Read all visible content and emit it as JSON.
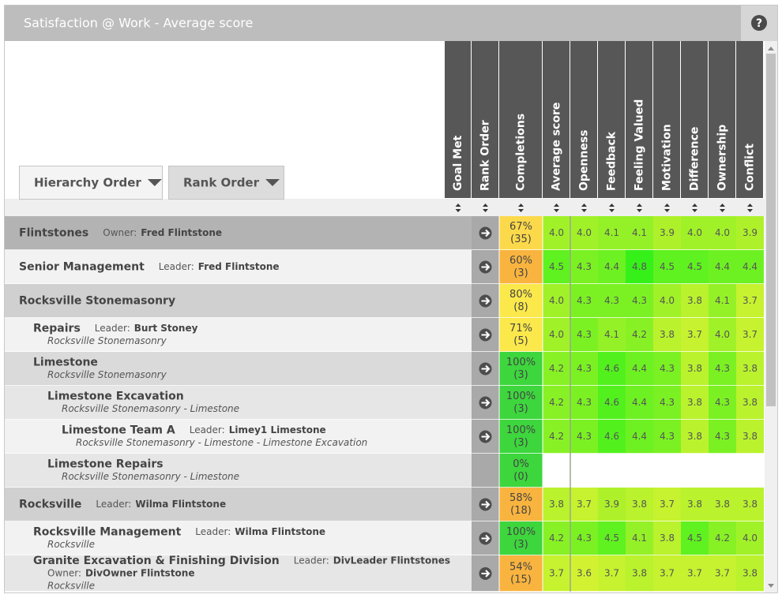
{
  "title": "Satisfaction @ Work - Average score",
  "help": "?",
  "tabs": [
    "Hierarchy Order",
    "Rank Order"
  ],
  "columns": [
    "Goal Met",
    "Rank Order",
    "Completions",
    "Average score",
    "Openness",
    "Feedback",
    "Feeling Valued",
    "Motivation",
    "Difference",
    "Ownership",
    "Conflict"
  ],
  "rows": [
    {
      "name": "Flintstones",
      "people": [
        {
          "role": "Owner:",
          "name": "Fred Flintstone"
        }
      ],
      "completion": "67%",
      "count": "(35)",
      "completion_color": "#fcd94a",
      "scores": [
        "4.0",
        "4.0",
        "4.1",
        "4.1",
        "3.9",
        "4.0",
        "4.0",
        "3.9"
      ]
    },
    {
      "name": "Senior Management",
      "people": [
        {
          "role": "Leader:",
          "name": "Fred Flintstone"
        }
      ],
      "completion": "60%",
      "count": "(3)",
      "completion_color": "#f9b43f",
      "scores": [
        "4.5",
        "4.3",
        "4.4",
        "4.8",
        "4.5",
        "4.5",
        "4.4",
        "4.4"
      ]
    },
    {
      "name": "Rocksville Stonemasonry",
      "completion": "80%",
      "count": "(8)",
      "completion_color": "#fbe84b",
      "scores": [
        "4.0",
        "4.3",
        "4.3",
        "4.3",
        "4.0",
        "3.8",
        "4.1",
        "3.7"
      ]
    },
    {
      "name": "Repairs",
      "people": [
        {
          "role": "Leader:",
          "name": "Burt Stoney"
        }
      ],
      "path": "Rocksville Stonemasonry",
      "completion": "71%",
      "count": "(5)",
      "completion_color": "#fbe84b",
      "scores": [
        "4.0",
        "4.3",
        "4.1",
        "4.2",
        "3.8",
        "3.7",
        "4.0",
        "3.7"
      ]
    },
    {
      "name": "Limestone",
      "path": "Rocksville Stonemasonry",
      "completion": "100%",
      "count": "(3)",
      "completion_color": "#3dd63d",
      "scores": [
        "4.2",
        "4.3",
        "4.6",
        "4.4",
        "4.3",
        "3.8",
        "4.3",
        "3.8"
      ]
    },
    {
      "name": "Limestone Excavation",
      "path": "Rocksville Stonemasonry - Limestone",
      "completion": "100%",
      "count": "(3)",
      "completion_color": "#3dd63d",
      "scores": [
        "4.2",
        "4.3",
        "4.6",
        "4.4",
        "4.3",
        "3.8",
        "4.3",
        "3.8"
      ]
    },
    {
      "name": "Limestone Team A",
      "people": [
        {
          "role": "Leader:",
          "name": "Limey1 Limestone"
        }
      ],
      "path": "Rocksville Stonemasonry - Limestone - Limestone Excavation",
      "completion": "100%",
      "count": "(3)",
      "completion_color": "#3dd63d",
      "scores": [
        "4.2",
        "4.3",
        "4.6",
        "4.4",
        "4.3",
        "3.8",
        "4.3",
        "3.8"
      ]
    },
    {
      "name": "Limestone Repairs",
      "path": "Rocksville Stonemasonry - Limestone",
      "completion": "0%",
      "count": "(0)",
      "completion_color": "#3dd63d",
      "scores": []
    },
    {
      "name": "Rocksville",
      "people": [
        {
          "role": "Leader:",
          "name": "Wilma Flintstone"
        }
      ],
      "completion": "58%",
      "count": "(18)",
      "completion_color": "#f9b43f",
      "scores": [
        "3.8",
        "3.7",
        "3.9",
        "3.8",
        "3.7",
        "3.8",
        "3.8",
        "3.8"
      ]
    },
    {
      "name": "Rocksville Management",
      "people": [
        {
          "role": "Leader:",
          "name": "Wilma Flintstone"
        }
      ],
      "path": "Rocksville",
      "completion": "100%",
      "count": "(3)",
      "completion_color": "#3dd63d",
      "scores": [
        "4.2",
        "4.3",
        "4.5",
        "4.1",
        "3.8",
        "4.5",
        "4.2",
        "4.0"
      ]
    },
    {
      "name": "Granite Excavation & Finishing Division",
      "people": [
        {
          "role": "Leader:",
          "name": "DivLeader Flintstones"
        },
        {
          "role": "Owner:",
          "name": "DivOwner Flintstone"
        }
      ],
      "path": "Rocksville",
      "completion": "54%",
      "count": "(15)",
      "completion_color": "#f9b43f",
      "scores": [
        "3.7",
        "3.6",
        "3.7",
        "3.8",
        "3.7",
        "3.7",
        "3.7",
        "3.8"
      ]
    }
  ]
}
